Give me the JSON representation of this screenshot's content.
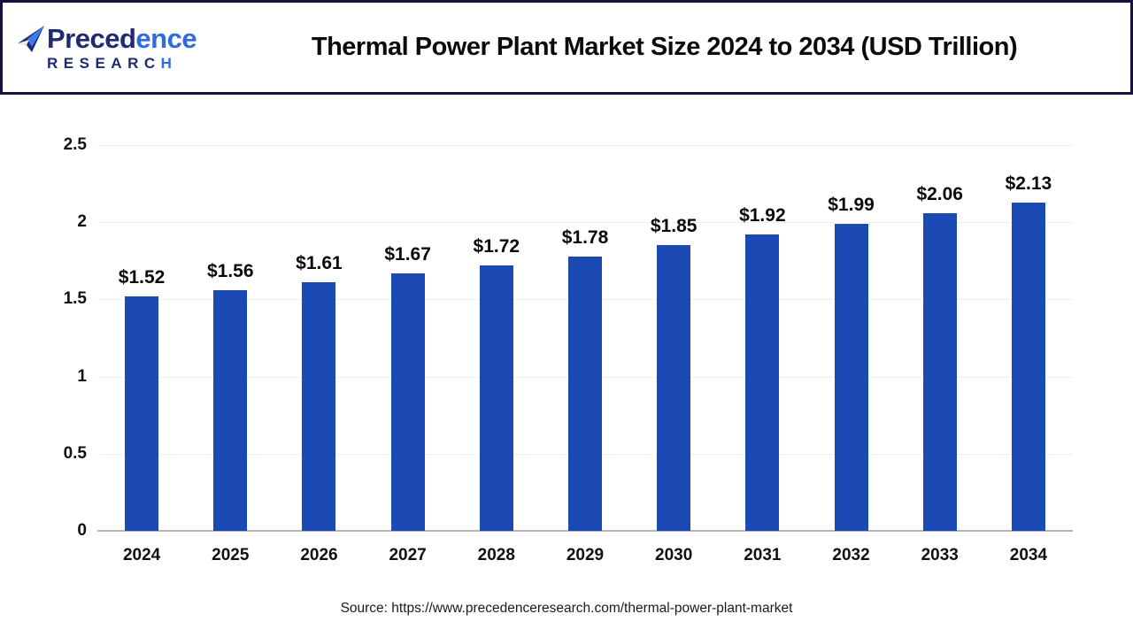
{
  "header": {
    "logo": {
      "name_dark": "Preced",
      "name_light": "ence",
      "sub_dark": "RESEARC",
      "sub_light": "H",
      "color_dark": "#1e2a72",
      "color_light": "#2f6be0"
    },
    "title": "Thermal Power Plant Market Size 2024 to 2034 (USD Trillion)"
  },
  "chart_data": {
    "type": "bar",
    "title": "Thermal Power Plant Market Size 2024 to 2034 (USD Trillion)",
    "unit": "USD Trillion",
    "categories": [
      "2024",
      "2025",
      "2026",
      "2027",
      "2028",
      "2029",
      "2030",
      "2031",
      "2032",
      "2033",
      "2034"
    ],
    "values": [
      1.52,
      1.56,
      1.61,
      1.67,
      1.72,
      1.78,
      1.85,
      1.92,
      1.99,
      2.06,
      2.13
    ],
    "bar_labels": [
      "$1.52",
      "$1.56",
      "$1.61",
      "$1.67",
      "$1.72",
      "$1.78",
      "$1.85",
      "$1.92",
      "$1.99",
      "$2.06",
      "$2.13"
    ],
    "ylim": [
      0,
      2.5
    ],
    "ytick_labels": [
      "0",
      "0.5",
      "1",
      "1.5",
      "2",
      "2.5"
    ],
    "bar_color": "#1c4ab5",
    "grid": true,
    "legend": "none"
  },
  "footer": {
    "source": "Source: https://www.precedenceresearch.com/thermal-power-plant-market"
  }
}
